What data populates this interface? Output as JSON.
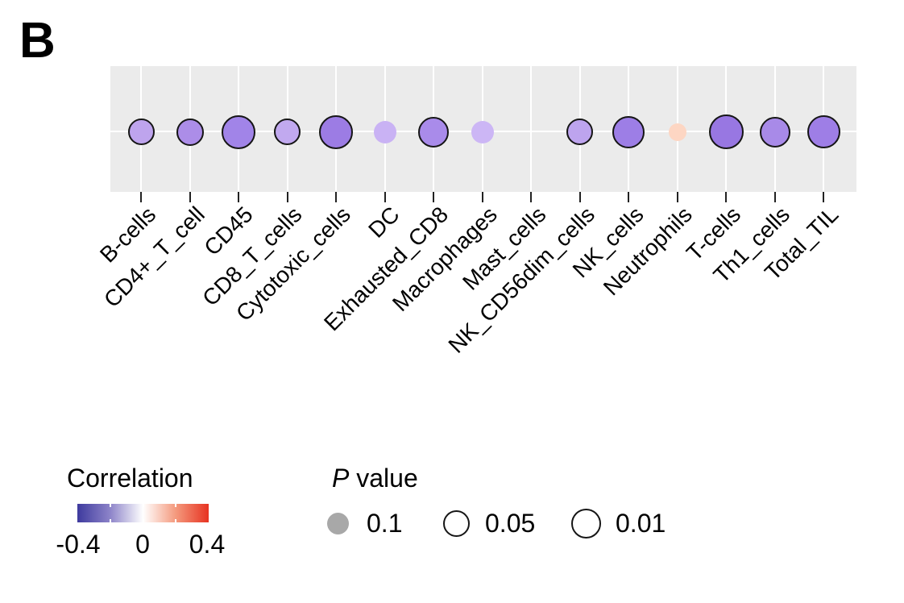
{
  "panel_label": "B",
  "chart_data": {
    "type": "scatter",
    "subtype": "correlation-dot-plot",
    "x_categories": [
      "B-cells",
      "CD4+_T_cell",
      "CD45",
      "CD8_T_cells",
      "Cytotoxic_cells",
      "DC",
      "Exhausted_CD8",
      "Macrophages",
      "Mast_cells",
      "NK_CD56dim_cells",
      "NK_cells",
      "Neutrophils",
      "T-cells",
      "Th1_cells",
      "Total_TIL"
    ],
    "color_encodes": "correlation",
    "size_encodes": "p_value",
    "plot_background": "#ebebeb",
    "gridline_color": "#ffffff",
    "grid": true,
    "points": [
      {
        "category": "B-cells",
        "correlation": -0.22,
        "p_value": 0.04,
        "color": "#bea4ed",
        "diameter": 33,
        "outlined": true
      },
      {
        "category": "CD4+_T_cell",
        "correlation": -0.26,
        "p_value": 0.03,
        "color": "#ac8de8",
        "diameter": 34,
        "outlined": true
      },
      {
        "category": "CD45",
        "correlation": -0.3,
        "p_value": 0.01,
        "color": "#a184e8",
        "diameter": 42,
        "outlined": true
      },
      {
        "category": "CD8_T_cells",
        "correlation": -0.2,
        "p_value": 0.04,
        "color": "#c1a9ef",
        "diameter": 33,
        "outlined": true
      },
      {
        "category": "Cytotoxic_cells",
        "correlation": -0.31,
        "p_value": 0.01,
        "color": "#9c7ce4",
        "diameter": 42,
        "outlined": true
      },
      {
        "category": "DC",
        "correlation": -0.17,
        "p_value": 0.08,
        "color": "#c9b2f4",
        "diameter": 28,
        "outlined": false
      },
      {
        "category": "Exhausted_CD8",
        "correlation": -0.27,
        "p_value": 0.02,
        "color": "#a98bea",
        "diameter": 38,
        "outlined": true
      },
      {
        "category": "Macrophages",
        "correlation": -0.16,
        "p_value": 0.08,
        "color": "#ccb6f5",
        "diameter": 28,
        "outlined": false
      },
      {
        "category": "Mast_cells",
        "correlation": null,
        "p_value": null,
        "color": null,
        "diameter": 0,
        "outlined": false
      },
      {
        "category": "NK_CD56dim_cells",
        "correlation": -0.22,
        "p_value": 0.04,
        "color": "#bda4ee",
        "diameter": 33,
        "outlined": true
      },
      {
        "category": "NK_cells",
        "correlation": -0.3,
        "p_value": 0.015,
        "color": "#9d7ee6",
        "diameter": 40,
        "outlined": true
      },
      {
        "category": "Neutrophils",
        "correlation": 0.12,
        "p_value": 0.1,
        "color": "#fdd6c3",
        "diameter": 22,
        "outlined": false
      },
      {
        "category": "T-cells",
        "correlation": -0.33,
        "p_value": 0.01,
        "color": "#9877e2",
        "diameter": 43,
        "outlined": true
      },
      {
        "category": "Th1_cells",
        "correlation": -0.27,
        "p_value": 0.02,
        "color": "#a88ae8",
        "diameter": 38,
        "outlined": true
      },
      {
        "category": "Total_TIL",
        "correlation": -0.3,
        "p_value": 0.01,
        "color": "#9e7ee6",
        "diameter": 41,
        "outlined": true
      }
    ]
  },
  "correlation_legend": {
    "title": "Correlation",
    "tick_labels": [
      "-0.4",
      "0",
      "0.4"
    ],
    "range": [
      -0.4,
      0.4
    ],
    "gradient_stops": [
      "#3e3a9e",
      "#8d84c9",
      "#ffffff",
      "#f4997d",
      "#e73321"
    ]
  },
  "pvalue_legend": {
    "title_italic": "P",
    "title_rest": " value",
    "items": [
      {
        "label": "0.1",
        "diameter": 27,
        "fill": "#a8a8a8",
        "outlined": false
      },
      {
        "label": "0.05",
        "diameter": 33,
        "fill": "#ffffff",
        "outlined": true
      },
      {
        "label": "0.01",
        "diameter": 37,
        "fill": "#ffffff",
        "outlined": true
      }
    ]
  }
}
